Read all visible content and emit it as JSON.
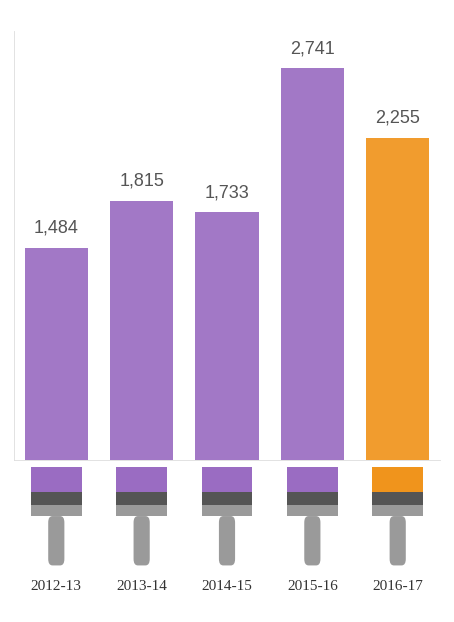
{
  "chart_data": {
    "type": "bar",
    "categories": [
      "2012-13",
      "2013-14",
      "2014-15",
      "2015-16",
      "2016-17"
    ],
    "values": [
      1484,
      1815,
      1733,
      2741,
      2255
    ],
    "value_labels": [
      "1,484",
      "1,815",
      "1,733",
      "2,741",
      "2,255"
    ],
    "colors": [
      "#9a6cc2",
      "#9a6cc2",
      "#9a6cc2",
      "#9a6cc2",
      "#f0941c"
    ],
    "ylim": [
      0,
      3000
    ],
    "data_labels": true,
    "tick_labels": "x",
    "grid": false
  }
}
